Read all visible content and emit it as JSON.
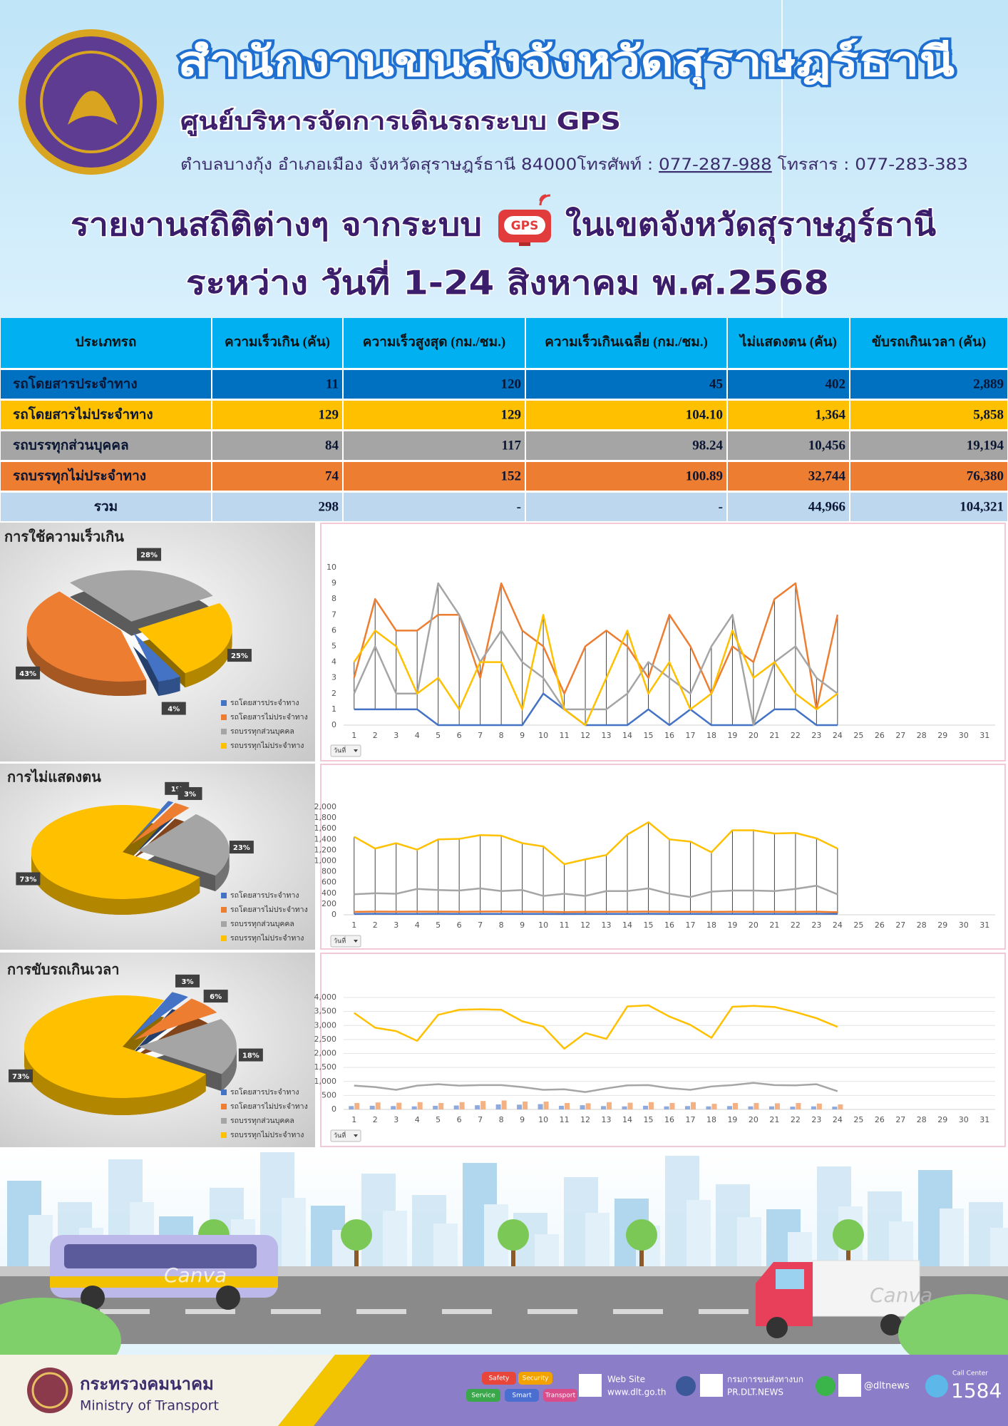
{
  "header": {
    "title": "สำนักงานขนส่งจังหวัดสุราษฎร์ธานี",
    "subtitle": "ศูนย์บริหารจัดการเดินรถระบบ GPS",
    "address": "ตำบลบางกุ้ง อำเภอเมือง จังหวัดสุราษฎร์ธานี 84000โทรศัพท์ :",
    "phone": "077-287-988",
    "fax": "โทรสาร : 077-283-383"
  },
  "report": {
    "title_left": "รายงานสถิติต่างๆ จากระบบ",
    "icon_label": "GPS",
    "title_right": "ในเขตจังหวัดสุราษฎร์ธานี",
    "period": "ระหว่าง วันที่ 1-24 สิงหาคม พ.ศ.2568"
  },
  "table": {
    "header_color": "#00b0f0",
    "headers": [
      "ประเภทรถ",
      "ความเร็วเกิน (คัน)",
      "ความเร็วสูงสุด (กม./ชม.)",
      "ความเร็วเกินเฉลี่ย (กม./ชม.)",
      "ไม่แสดงตน (คัน)",
      "ขับรถเกินเวลา (คัน)"
    ],
    "rows": [
      {
        "color": "#0070c0",
        "cells": [
          "รถโดยสารประจำทาง",
          "11",
          "120",
          "45",
          "402",
          "2,889"
        ]
      },
      {
        "color": "#ffc000",
        "cells": [
          "รถโดยสารไม่ประจำทาง",
          "129",
          "129",
          "104.10",
          "1,364",
          "5,858"
        ]
      },
      {
        "color": "#a5a5a5",
        "cells": [
          "รถบรรทุกส่วนบุคคล",
          "84",
          "117",
          "98.24",
          "10,456",
          "19,194"
        ]
      },
      {
        "color": "#ed7d31",
        "cells": [
          "รถบรรทุกไม่ประจำทาง",
          "74",
          "152",
          "100.89",
          "32,744",
          "76,380"
        ]
      },
      {
        "color": "#bdd7ee",
        "cells": [
          "รวม",
          "298",
          "-",
          "-",
          "44,966",
          "104,321"
        ]
      }
    ]
  },
  "chart_data": [
    {
      "type": "pie",
      "title": "การใช้ความเร็วเกิน",
      "categories": [
        "รถโดยสารประจำทาง",
        "รถโดยสารไม่ประจำทาง",
        "รถบรรทุกส่วนบุคคล",
        "รถบรรทุกไม่ประจำทาง"
      ],
      "values": [
        4,
        43,
        28,
        25
      ],
      "value_labels": [
        "4%",
        "43%",
        "28%",
        "25%"
      ],
      "colors": [
        "#4472c4",
        "#ed7d31",
        "#a5a5a5",
        "#ffc000"
      ]
    },
    {
      "type": "line",
      "field_button": "วันที่",
      "grid": false,
      "high_low_lines": true,
      "categories": [
        1,
        2,
        3,
        4,
        5,
        6,
        7,
        8,
        9,
        10,
        11,
        12,
        13,
        14,
        15,
        16,
        17,
        18,
        19,
        20,
        21,
        22,
        23,
        24,
        25,
        26,
        27,
        28,
        29,
        30,
        31
      ],
      "ylim": [
        0,
        10
      ],
      "yticks": [
        0,
        1,
        2,
        3,
        4,
        5,
        6,
        7,
        8,
        9,
        10
      ],
      "series": [
        {
          "color": "#4472c4",
          "values": [
            1,
            1,
            1,
            1,
            0,
            0,
            0,
            0,
            0,
            2,
            1,
            0,
            0,
            0,
            1,
            0,
            1,
            0,
            0,
            0,
            1,
            1,
            0,
            0,
            null,
            null,
            null,
            null,
            null,
            null,
            null
          ]
        },
        {
          "color": "#ed7d31",
          "values": [
            3,
            8,
            6,
            6,
            7,
            7,
            3,
            9,
            6,
            5,
            2,
            5,
            6,
            5,
            3,
            7,
            5,
            2,
            5,
            4,
            8,
            9,
            1,
            7,
            null,
            null,
            null,
            null,
            null,
            null,
            null
          ]
        },
        {
          "color": "#a5a5a5",
          "values": [
            2,
            5,
            2,
            2,
            9,
            7,
            4,
            6,
            4,
            3,
            1,
            1,
            1,
            2,
            4,
            3,
            2,
            5,
            7,
            0,
            4,
            5,
            3,
            2,
            null,
            null,
            null,
            null,
            null,
            null,
            null
          ]
        },
        {
          "color": "#ffc000",
          "values": [
            4,
            6,
            5,
            2,
            3,
            1,
            4,
            4,
            1,
            7,
            1,
            0,
            3,
            6,
            2,
            4,
            1,
            2,
            6,
            3,
            4,
            2,
            1,
            2,
            null,
            null,
            null,
            null,
            null,
            null,
            null
          ]
        }
      ]
    },
    {
      "type": "pie",
      "title": "การไม่แสดงตน",
      "categories": [
        "รถโดยสารประจำทาง",
        "รถโดยสารไม่ประจำทาง",
        "รถบรรทุกส่วนบุคคล",
        "รถบรรทุกไม่ประจำทาง"
      ],
      "values": [
        1,
        3,
        23,
        73
      ],
      "value_labels": [
        "1%",
        "3%",
        "23%",
        "73%"
      ],
      "colors": [
        "#4472c4",
        "#ed7d31",
        "#a5a5a5",
        "#ffc000"
      ]
    },
    {
      "type": "line",
      "field_button": "วันที่",
      "grid": false,
      "high_low_lines": true,
      "categories": [
        1,
        2,
        3,
        4,
        5,
        6,
        7,
        8,
        9,
        10,
        11,
        12,
        13,
        14,
        15,
        16,
        17,
        18,
        19,
        20,
        21,
        22,
        23,
        24,
        25,
        26,
        27,
        28,
        29,
        30,
        31
      ],
      "ylim": [
        0,
        2000
      ],
      "yticks": [
        0,
        200,
        400,
        600,
        800,
        {
          "value": 1000,
          "label": "1,000"
        },
        {
          "value": 1200,
          "label": "1,200"
        },
        {
          "value": 1400,
          "label": "1,400"
        },
        {
          "value": 1600,
          "label": "1,600"
        },
        {
          "value": 1800,
          "label": "1,800"
        },
        {
          "value": 2000,
          "label": "2,000"
        }
      ],
      "series": [
        {
          "color": "#4472c4",
          "values": [
            15,
            18,
            16,
            17,
            18,
            16,
            17,
            16,
            17,
            16,
            15,
            17,
            17,
            16,
            18,
            17,
            16,
            17,
            17,
            16,
            17,
            16,
            18,
            17,
            null,
            null,
            null,
            null,
            null,
            null,
            null
          ]
        },
        {
          "color": "#ed7d31",
          "values": [
            55,
            60,
            58,
            60,
            58,
            57,
            60,
            62,
            58,
            56,
            52,
            55,
            57,
            58,
            60,
            57,
            56,
            55,
            58,
            57,
            56,
            54,
            58,
            48,
            null,
            null,
            null,
            null,
            null,
            null,
            null
          ]
        },
        {
          "color": "#a5a5a5",
          "values": [
            380,
            400,
            390,
            480,
            460,
            450,
            490,
            440,
            460,
            350,
            390,
            350,
            440,
            440,
            490,
            390,
            330,
            430,
            450,
            450,
            440,
            480,
            540,
            380,
            null,
            null,
            null,
            null,
            null,
            null,
            null
          ]
        },
        {
          "color": "#ffc000",
          "values": [
            1450,
            1230,
            1330,
            1210,
            1400,
            1410,
            1480,
            1470,
            1330,
            1270,
            940,
            1030,
            1110,
            1490,
            1720,
            1400,
            1360,
            1160,
            1570,
            1570,
            1510,
            1520,
            1420,
            1230,
            null,
            null,
            null,
            null,
            null,
            null,
            null
          ]
        }
      ]
    },
    {
      "type": "pie",
      "title": "การขับรถเกินเวลา",
      "categories": [
        "รถโดยสารประจำทาง",
        "รถโดยสารไม่ประจำทาง",
        "รถบรรทุกส่วนบุคคล",
        "รถบรรทุกไม่ประจำทาง"
      ],
      "values": [
        3,
        6,
        18,
        73
      ],
      "value_labels": [
        "3%",
        "6%",
        "18%",
        "73%"
      ],
      "colors": [
        "#4472c4",
        "#ed7d31",
        "#a5a5a5",
        "#ffc000"
      ]
    },
    {
      "type": "combo",
      "field_button": "วันที่",
      "grid": true,
      "high_low_lines": false,
      "categories": [
        1,
        2,
        3,
        4,
        5,
        6,
        7,
        8,
        9,
        10,
        11,
        12,
        13,
        14,
        15,
        16,
        17,
        18,
        19,
        20,
        21,
        22,
        23,
        24,
        25,
        26,
        27,
        28,
        29,
        30,
        31
      ],
      "ylim": [
        0,
        4000
      ],
      "yticks": [
        0,
        500,
        {
          "value": 1000,
          "label": "1,000"
        },
        {
          "value": 1500,
          "label": "1,500"
        },
        {
          "value": 2000,
          "label": "2,000"
        },
        {
          "value": 2500,
          "label": "2,500"
        },
        {
          "value": 3000,
          "label": "3,000"
        },
        {
          "value": 3500,
          "label": "3,500"
        },
        {
          "value": 4000,
          "label": "4,000"
        }
      ],
      "series": [
        {
          "mark": "bar",
          "color": "#8faadc",
          "values": [
            120,
            130,
            120,
            110,
            130,
            140,
            150,
            180,
            170,
            190,
            130,
            150,
            120,
            110,
            130,
            110,
            120,
            110,
            120,
            110,
            110,
            100,
            110,
            100,
            null,
            null,
            null,
            null,
            null,
            null,
            null
          ]
        },
        {
          "mark": "bar",
          "color": "#f4b183",
          "values": [
            230,
            250,
            240,
            260,
            230,
            260,
            300,
            320,
            280,
            280,
            230,
            220,
            260,
            240,
            260,
            230,
            260,
            200,
            230,
            230,
            220,
            230,
            210,
            180,
            null,
            null,
            null,
            null,
            null,
            null,
            null
          ]
        },
        {
          "mark": "line",
          "color": "#a5a5a5",
          "values": [
            850,
            800,
            700,
            850,
            900,
            850,
            870,
            870,
            800,
            700,
            720,
            620,
            750,
            860,
            870,
            760,
            700,
            820,
            870,
            950,
            870,
            860,
            900,
            650,
            null,
            null,
            null,
            null,
            null,
            null,
            null
          ]
        },
        {
          "mark": "line",
          "color": "#ffc000",
          "values": [
            3450,
            2920,
            2800,
            2450,
            3380,
            3560,
            3580,
            3560,
            3150,
            2960,
            2170,
            2730,
            2520,
            3680,
            3720,
            3320,
            3020,
            2560,
            3670,
            3700,
            3660,
            3480,
            3260,
            2950,
            null,
            null,
            null,
            null,
            null,
            null,
            null
          ]
        }
      ]
    }
  ],
  "illustration": {
    "watermarks": [
      "Canva",
      "Canva"
    ]
  },
  "footer": {
    "ministry_th": "กระทรวงคมนาคม",
    "ministry_en": "Ministry of Transport",
    "badges": [
      "Safety",
      "Security",
      "Service",
      "Smart",
      "Transport"
    ],
    "web_label": "Web Site",
    "website": "www.dlt.go.th",
    "facebook": "กรมการขนส่งทางบก",
    "facebook_handle": "PR.DLT.NEWS",
    "line": "@dltnews",
    "call_label": "Call Center",
    "call_number": "1584"
  }
}
